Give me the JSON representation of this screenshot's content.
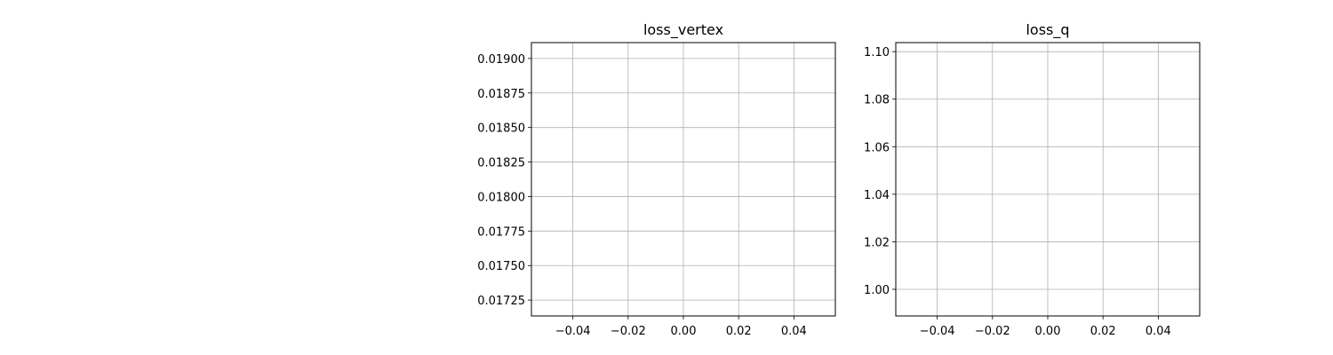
{
  "chart_data": [
    {
      "type": "line",
      "title": "loss_vertex",
      "xlabel": "",
      "ylabel": "",
      "series": [],
      "xlim": [
        -0.055,
        0.055
      ],
      "ylim": [
        0.017135,
        0.019115
      ],
      "x_ticks": [
        -0.04,
        -0.02,
        0.0,
        0.02,
        0.04
      ],
      "x_tick_labels": [
        "−0.04",
        "−0.02",
        "0.00",
        "0.02",
        "0.04"
      ],
      "y_ticks": [
        0.019,
        0.01875,
        0.0185,
        0.01825,
        0.018,
        0.01775,
        0.0175,
        0.01725
      ],
      "y_tick_labels": [
        "0.01900",
        "0.01875",
        "0.01850",
        "0.01825",
        "0.01800",
        "0.01775",
        "0.01750",
        "0.01725"
      ],
      "grid": true
    },
    {
      "type": "line",
      "title": "loss_q",
      "xlabel": "",
      "ylabel": "",
      "series": [],
      "xlim": [
        -0.055,
        0.055
      ],
      "ylim": [
        0.9888,
        1.1038
      ],
      "x_ticks": [
        -0.04,
        -0.02,
        0.0,
        0.02,
        0.04
      ],
      "x_tick_labels": [
        "−0.04",
        "−0.02",
        "0.00",
        "0.02",
        "0.04"
      ],
      "y_ticks": [
        1.1,
        1.08,
        1.06,
        1.04,
        1.02,
        1.0
      ],
      "y_tick_labels": [
        "1.10",
        "1.08",
        "1.06",
        "1.04",
        "1.02",
        "1.00"
      ],
      "grid": true
    }
  ]
}
